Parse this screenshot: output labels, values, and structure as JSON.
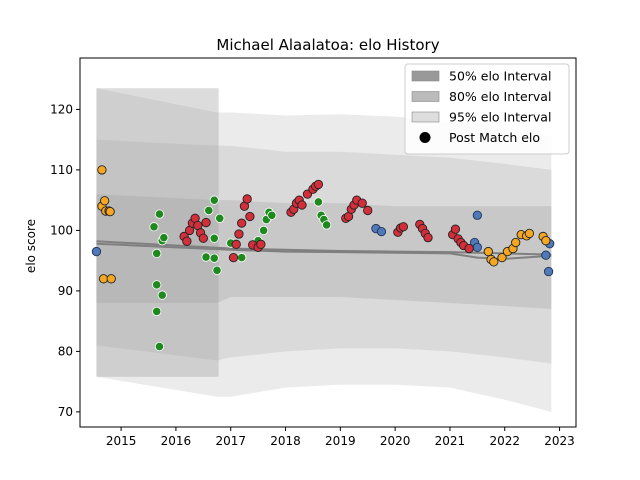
{
  "chart_data": {
    "type": "scatter",
    "title": "Michael Alaalatoa: elo History",
    "xlabel": "",
    "ylabel": "elo score",
    "xlim": [
      2014.25,
      2023.3
    ],
    "ylim": [
      67.5,
      128.5
    ],
    "xticks": [
      2015,
      2016,
      2017,
      2018,
      2019,
      2020,
      2021,
      2022,
      2023
    ],
    "yticks": [
      70,
      80,
      90,
      100,
      110,
      120
    ],
    "grid": false,
    "legend_position": "top-right",
    "legend": [
      {
        "label": "50% elo Interval",
        "kind": "patch",
        "color": "#999999"
      },
      {
        "label": "80% elo Interval",
        "kind": "patch",
        "color": "#bbbbbb"
      },
      {
        "label": "95% elo Interval",
        "kind": "patch",
        "color": "#dddddd"
      },
      {
        "label": "Post Match elo",
        "kind": "marker",
        "color": "#000000"
      }
    ],
    "interval_bands": [
      {
        "name": "95% elo Interval",
        "color": "#dddddd",
        "x": [
          2014.55,
          2016.75,
          2017.0,
          2018.0,
          2019.0,
          2020.0,
          2021.0,
          2022.0,
          2022.85
        ],
        "upper": [
          123.5,
          119.5,
          119.5,
          119.0,
          119.2,
          118.8,
          118.0,
          117.0,
          115.5
        ],
        "lower": [
          75.8,
          72.5,
          72.5,
          74.0,
          74.5,
          74.5,
          74.0,
          72.0,
          70.0
        ]
      },
      {
        "name": "80% elo Interval",
        "color": "#cfcfcf",
        "x": [
          2014.55,
          2016.75,
          2017.0,
          2018.0,
          2019.0,
          2020.0,
          2021.0,
          2022.0,
          2022.85
        ],
        "upper": [
          115.0,
          114.0,
          114.0,
          113.0,
          113.0,
          112.5,
          112.0,
          111.0,
          110.0
        ],
        "lower": [
          81.0,
          78.5,
          79.0,
          80.0,
          80.5,
          80.5,
          80.0,
          79.0,
          78.0
        ]
      },
      {
        "name": "50% elo Interval",
        "color": "#bdbdbd",
        "x": [
          2014.55,
          2016.75,
          2017.0,
          2018.0,
          2019.0,
          2020.0,
          2021.0,
          2022.0,
          2022.85
        ],
        "upper": [
          106.0,
          105.0,
          105.0,
          104.5,
          104.5,
          104.0,
          104.0,
          104.0,
          104.0
        ],
        "lower": [
          88.0,
          88.0,
          89.0,
          89.0,
          89.0,
          88.5,
          88.0,
          87.5,
          87.0
        ]
      }
    ],
    "shaded_region": {
      "x_start": 2014.55,
      "x_end": 2016.78,
      "color": "#9a9a9a"
    },
    "mean_lines": [
      {
        "x": [
          2014.55,
          2016.0,
          2017.0,
          2018.0,
          2019.0,
          2020.0,
          2021.0,
          2021.5,
          2022.0,
          2022.85
        ],
        "y": [
          98.2,
          97.5,
          97.0,
          96.8,
          96.6,
          96.5,
          96.4,
          96.3,
          96.2,
          96.0
        ]
      },
      {
        "x": [
          2014.55,
          2016.0,
          2017.0,
          2018.0,
          2019.0,
          2020.0,
          2021.0,
          2021.5,
          2022.0,
          2022.85
        ],
        "y": [
          97.8,
          97.2,
          96.8,
          96.5,
          96.4,
          96.3,
          96.2,
          95.5,
          95.3,
          95.8
        ]
      }
    ],
    "series": [
      {
        "name": "blue",
        "color": "#4f79b8",
        "points": [
          [
            2014.55,
            96.5
          ],
          [
            2019.65,
            100.3
          ],
          [
            2019.75,
            99.8
          ],
          [
            2021.5,
            102.5
          ],
          [
            2021.45,
            98.0
          ],
          [
            2021.5,
            97.2
          ],
          [
            2022.75,
            95.9
          ],
          [
            2022.8,
            93.2
          ],
          [
            2022.82,
            97.8
          ]
        ]
      },
      {
        "name": "orange",
        "color": "#f5a623",
        "points": [
          [
            2014.65,
            110.0
          ],
          [
            2014.65,
            104.0
          ],
          [
            2014.7,
            104.9
          ],
          [
            2014.72,
            103.2
          ],
          [
            2014.78,
            103.2
          ],
          [
            2014.8,
            103.1
          ],
          [
            2014.68,
            92.0
          ],
          [
            2014.82,
            92.0
          ],
          [
            2021.7,
            96.5
          ],
          [
            2021.75,
            95.2
          ],
          [
            2021.8,
            94.8
          ],
          [
            2021.95,
            95.5
          ],
          [
            2022.05,
            96.5
          ],
          [
            2022.15,
            97.0
          ],
          [
            2022.2,
            98.0
          ],
          [
            2022.3,
            99.3
          ],
          [
            2022.4,
            99.1
          ],
          [
            2022.45,
            99.5
          ],
          [
            2022.7,
            99.0
          ],
          [
            2022.75,
            98.3
          ]
        ]
      },
      {
        "name": "green",
        "color": "#1e8a1e",
        "points": [
          [
            2015.6,
            100.6
          ],
          [
            2015.65,
            96.2
          ],
          [
            2015.65,
            91.0
          ],
          [
            2015.65,
            86.6
          ],
          [
            2015.7,
            102.7
          ],
          [
            2015.7,
            80.8
          ],
          [
            2015.75,
            89.3
          ],
          [
            2015.75,
            98.3
          ],
          [
            2015.78,
            98.8
          ],
          [
            2016.55,
            95.6
          ],
          [
            2016.6,
            103.3
          ],
          [
            2016.7,
            105.0
          ],
          [
            2016.7,
            98.7
          ],
          [
            2016.7,
            95.4
          ],
          [
            2016.75,
            93.4
          ],
          [
            2016.8,
            102.0
          ],
          [
            2017.0,
            97.9
          ],
          [
            2017.2,
            95.5
          ],
          [
            2017.5,
            98.3
          ],
          [
            2017.6,
            100.0
          ],
          [
            2017.65,
            101.8
          ],
          [
            2017.7,
            103.0
          ],
          [
            2017.75,
            102.5
          ],
          [
            2018.6,
            104.7
          ],
          [
            2018.65,
            102.5
          ],
          [
            2018.7,
            101.8
          ],
          [
            2018.75,
            100.9
          ]
        ]
      },
      {
        "name": "red",
        "color": "#d32f3a",
        "points": [
          [
            2016.15,
            99.0
          ],
          [
            2016.2,
            98.2
          ],
          [
            2016.25,
            100.0
          ],
          [
            2016.3,
            101.2
          ],
          [
            2016.35,
            102.0
          ],
          [
            2016.4,
            100.8
          ],
          [
            2016.45,
            99.6
          ],
          [
            2016.5,
            98.7
          ],
          [
            2016.55,
            101.3
          ],
          [
            2017.05,
            95.5
          ],
          [
            2017.1,
            97.7
          ],
          [
            2017.15,
            99.4
          ],
          [
            2017.2,
            101.2
          ],
          [
            2017.25,
            104.0
          ],
          [
            2017.3,
            105.2
          ],
          [
            2017.35,
            102.3
          ],
          [
            2017.4,
            97.6
          ],
          [
            2017.5,
            97.2
          ],
          [
            2017.55,
            97.7
          ],
          [
            2018.1,
            103.0
          ],
          [
            2018.15,
            103.5
          ],
          [
            2018.2,
            104.5
          ],
          [
            2018.25,
            105.0
          ],
          [
            2018.3,
            104.2
          ],
          [
            2018.4,
            106.0
          ],
          [
            2018.5,
            106.8
          ],
          [
            2018.55,
            107.3
          ],
          [
            2018.6,
            107.6
          ],
          [
            2019.1,
            102.0
          ],
          [
            2019.15,
            102.3
          ],
          [
            2019.2,
            103.5
          ],
          [
            2019.25,
            104.2
          ],
          [
            2019.3,
            105.0
          ],
          [
            2019.4,
            104.5
          ],
          [
            2019.5,
            103.3
          ],
          [
            2020.05,
            99.7
          ],
          [
            2020.1,
            100.4
          ],
          [
            2020.15,
            100.6
          ],
          [
            2020.45,
            101.0
          ],
          [
            2020.5,
            100.3
          ],
          [
            2020.55,
            99.5
          ],
          [
            2020.6,
            98.8
          ],
          [
            2021.05,
            99.3
          ],
          [
            2021.1,
            100.2
          ],
          [
            2021.15,
            98.6
          ],
          [
            2021.2,
            98.0
          ],
          [
            2021.25,
            97.5
          ],
          [
            2021.35,
            97.0
          ]
        ]
      }
    ]
  }
}
